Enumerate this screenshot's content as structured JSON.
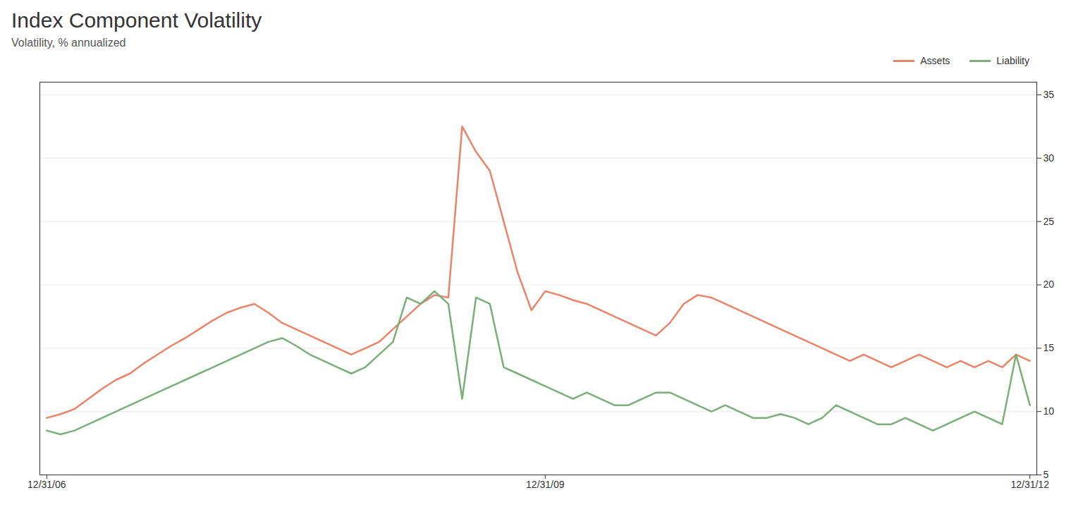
{
  "chart_data": {
    "type": "line",
    "title": "Index Component Volatility",
    "subtitle": "Volatility, % annualized",
    "categories": [
      "12/31/06",
      null,
      null,
      null,
      null,
      null,
      null,
      null,
      null,
      null,
      null,
      null,
      null,
      null,
      null,
      null,
      null,
      null,
      null,
      null,
      null,
      null,
      null,
      null,
      null,
      null,
      null,
      null,
      null,
      null,
      null,
      null,
      null,
      null,
      null,
      null,
      "12/31/09",
      null,
      null,
      null,
      null,
      null,
      null,
      null,
      null,
      null,
      null,
      null,
      null,
      null,
      null,
      null,
      null,
      null,
      null,
      null,
      null,
      null,
      null,
      null,
      null,
      null,
      null,
      null,
      null,
      null,
      null,
      null,
      null,
      null,
      null,
      "12/31/12"
    ],
    "series": [
      {
        "name": "Assets",
        "color": "#E8846A",
        "values": [
          9.5,
          9.8,
          10.2,
          11.0,
          11.8,
          12.5,
          13.0,
          13.8,
          14.5,
          15.2,
          15.8,
          16.5,
          17.2,
          17.8,
          18.2,
          18.5,
          17.8,
          17.0,
          16.5,
          16.0,
          15.5,
          15.0,
          14.5,
          15.0,
          15.5,
          16.5,
          17.5,
          18.5,
          19.2,
          19.0,
          32.5,
          30.5,
          29.0,
          25.0,
          21.0,
          18.0,
          19.5,
          19.2,
          18.8,
          18.5,
          18.0,
          17.5,
          17.0,
          16.5,
          16.0,
          17.0,
          18.5,
          19.2,
          19.0,
          18.5,
          18.0,
          17.5,
          17.0,
          16.5,
          16.0,
          15.5,
          15.0,
          14.5,
          14.0,
          14.5,
          14.0,
          13.5,
          14.0,
          14.5,
          14.0,
          13.5,
          14.0,
          13.5,
          14.0,
          13.5,
          14.5,
          14.0
        ]
      },
      {
        "name": "Liability",
        "color": "#7AAF7A",
        "values": [
          8.5,
          8.2,
          8.5,
          9.0,
          9.5,
          10.0,
          10.5,
          11.0,
          11.5,
          12.0,
          12.5,
          13.0,
          13.5,
          14.0,
          14.5,
          15.0,
          15.5,
          15.8,
          15.2,
          14.5,
          14.0,
          13.5,
          13.0,
          13.5,
          14.5,
          15.5,
          19.0,
          18.5,
          19.5,
          18.5,
          11.0,
          19.0,
          18.5,
          13.5,
          13.0,
          12.5,
          12.0,
          11.5,
          11.0,
          11.5,
          11.0,
          10.5,
          10.5,
          11.0,
          11.5,
          11.5,
          11.0,
          10.5,
          10.0,
          10.5,
          10.0,
          9.5,
          9.5,
          9.8,
          9.5,
          9.0,
          9.5,
          10.5,
          10.0,
          9.5,
          9.0,
          9.0,
          9.5,
          9.0,
          8.5,
          9.0,
          9.5,
          10.0,
          9.5,
          9.0,
          14.5,
          10.5
        ]
      }
    ],
    "ylim": [
      5,
      36
    ],
    "yticks": [
      5,
      10,
      15,
      20,
      25,
      30,
      35
    ],
    "grid": true,
    "legend": "upper right"
  }
}
